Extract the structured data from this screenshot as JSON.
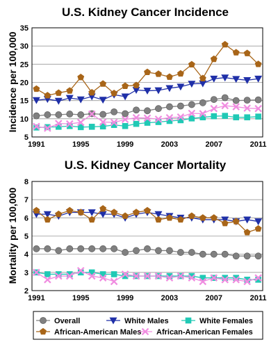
{
  "chart_data": [
    {
      "type": "line",
      "title": "U.S. Kidney Cancer Incidence",
      "xlabel": "",
      "ylabel": "Incidence per 100,000",
      "ylim": [
        5,
        35
      ],
      "yticks": [
        "5",
        "10",
        "15",
        "20",
        "25",
        "30",
        "35"
      ],
      "xticks": [
        "1991",
        "1995",
        "1999",
        "2003",
        "2007",
        "2011"
      ],
      "grid": true,
      "x": [
        1991,
        1992,
        1993,
        1994,
        1995,
        1996,
        1997,
        1998,
        1999,
        2000,
        2001,
        2002,
        2003,
        2004,
        2005,
        2006,
        2007,
        2008,
        2009,
        2010,
        2011
      ],
      "series": [
        {
          "name": "Overall",
          "color": "#808080",
          "marker": "circle",
          "values": [
            10.8,
            11.1,
            11.1,
            11.3,
            11.1,
            11.4,
            11.2,
            11.9,
            11.4,
            12.4,
            12.2,
            12.8,
            13.3,
            13.5,
            13.9,
            14.4,
            15.3,
            15.8,
            15.0,
            15.1,
            15.2
          ]
        },
        {
          "name": "White Males",
          "color": "#1f2fa8",
          "marker": "triangle-down",
          "values": [
            15.1,
            15.4,
            14.9,
            15.7,
            15.3,
            16.1,
            15.2,
            16.6,
            16.1,
            17.9,
            17.7,
            17.8,
            18.4,
            18.8,
            19.6,
            19.7,
            21.0,
            21.3,
            20.9,
            20.6,
            21.0
          ]
        },
        {
          "name": "White Females",
          "color": "#20c9b5",
          "marker": "square",
          "values": [
            7.6,
            7.7,
            7.8,
            8.0,
            7.7,
            7.8,
            7.9,
            8.3,
            8.0,
            8.6,
            8.9,
            9.1,
            9.4,
            9.6,
            10.1,
            10.4,
            10.7,
            10.8,
            10.4,
            10.4,
            10.6
          ]
        },
        {
          "name": "African-American Males",
          "color": "#a86518",
          "marker": "pentagon",
          "values": [
            18.2,
            16.4,
            17.1,
            17.7,
            21.4,
            17.2,
            19.6,
            17.0,
            19.0,
            19.2,
            22.8,
            22.3,
            21.5,
            22.4,
            24.9,
            21.1,
            26.4,
            30.4,
            28.2,
            28.0,
            25.0
          ]
        },
        {
          "name": "African-American Females",
          "color": "#f08ce0",
          "marker": "x",
          "values": [
            7.9,
            7.4,
            8.7,
            8.6,
            9.0,
            11.3,
            9.1,
            9.0,
            9.8,
            10.3,
            10.2,
            9.9,
            10.3,
            10.5,
            11.5,
            11.4,
            12.8,
            13.6,
            13.3,
            12.9,
            12.8
          ]
        }
      ]
    },
    {
      "type": "line",
      "title": "U.S. Kidney Cancer Mortality",
      "xlabel": "",
      "ylabel": "Mortality per 100,000",
      "ylim": [
        2,
        8
      ],
      "yticks": [
        "2",
        "3",
        "4",
        "5",
        "6",
        "7",
        "8"
      ],
      "xticks": [
        "1991",
        "1995",
        "1999",
        "2003",
        "2007",
        "2011"
      ],
      "grid": true,
      "x": [
        1991,
        1992,
        1993,
        1994,
        1995,
        1996,
        1997,
        1998,
        1999,
        2000,
        2001,
        2002,
        2003,
        2004,
        2005,
        2006,
        2007,
        2008,
        2009,
        2010,
        2011
      ],
      "series": [
        {
          "name": "Overall",
          "color": "#808080",
          "marker": "circle",
          "values": [
            4.3,
            4.3,
            4.2,
            4.3,
            4.3,
            4.3,
            4.3,
            4.3,
            4.1,
            4.2,
            4.3,
            4.2,
            4.2,
            4.1,
            4.1,
            4.0,
            4.0,
            4.0,
            3.9,
            3.9,
            3.9
          ]
        },
        {
          "name": "White Males",
          "color": "#1f2fa8",
          "marker": "triangle-down",
          "values": [
            6.2,
            6.2,
            6.1,
            6.3,
            6.3,
            6.3,
            6.2,
            6.2,
            6.0,
            6.2,
            6.3,
            6.2,
            6.1,
            6.0,
            6.0,
            5.9,
            5.9,
            5.9,
            5.8,
            5.9,
            5.8
          ]
        },
        {
          "name": "White Females",
          "color": "#20c9b5",
          "marker": "square",
          "values": [
            3.0,
            2.9,
            2.9,
            2.9,
            3.0,
            3.0,
            2.9,
            2.9,
            2.8,
            2.8,
            2.8,
            2.8,
            2.8,
            2.8,
            2.8,
            2.7,
            2.7,
            2.7,
            2.7,
            2.6,
            2.6
          ]
        },
        {
          "name": "African-American Males",
          "color": "#a86518",
          "marker": "pentagon",
          "values": [
            6.4,
            5.9,
            6.2,
            6.4,
            6.3,
            5.9,
            6.5,
            6.3,
            6.1,
            6.3,
            6.4,
            5.9,
            6.0,
            5.9,
            6.1,
            6.0,
            6.0,
            5.7,
            5.8,
            5.2,
            5.4
          ]
        },
        {
          "name": "African-American Females",
          "color": "#f08ce0",
          "marker": "x",
          "values": [
            3.0,
            2.6,
            2.8,
            2.8,
            3.1,
            2.8,
            2.7,
            2.5,
            2.9,
            2.8,
            2.8,
            2.8,
            2.7,
            2.8,
            2.7,
            2.5,
            2.7,
            2.6,
            2.6,
            2.5,
            2.7
          ]
        }
      ]
    }
  ],
  "legend": {
    "items": [
      {
        "label": "Overall",
        "series": 0
      },
      {
        "label": "White Males",
        "series": 1
      },
      {
        "label": "White Females",
        "series": 2
      },
      {
        "label": "African-American Males",
        "series": 3
      },
      {
        "label": "African-American Females",
        "series": 4
      }
    ]
  }
}
